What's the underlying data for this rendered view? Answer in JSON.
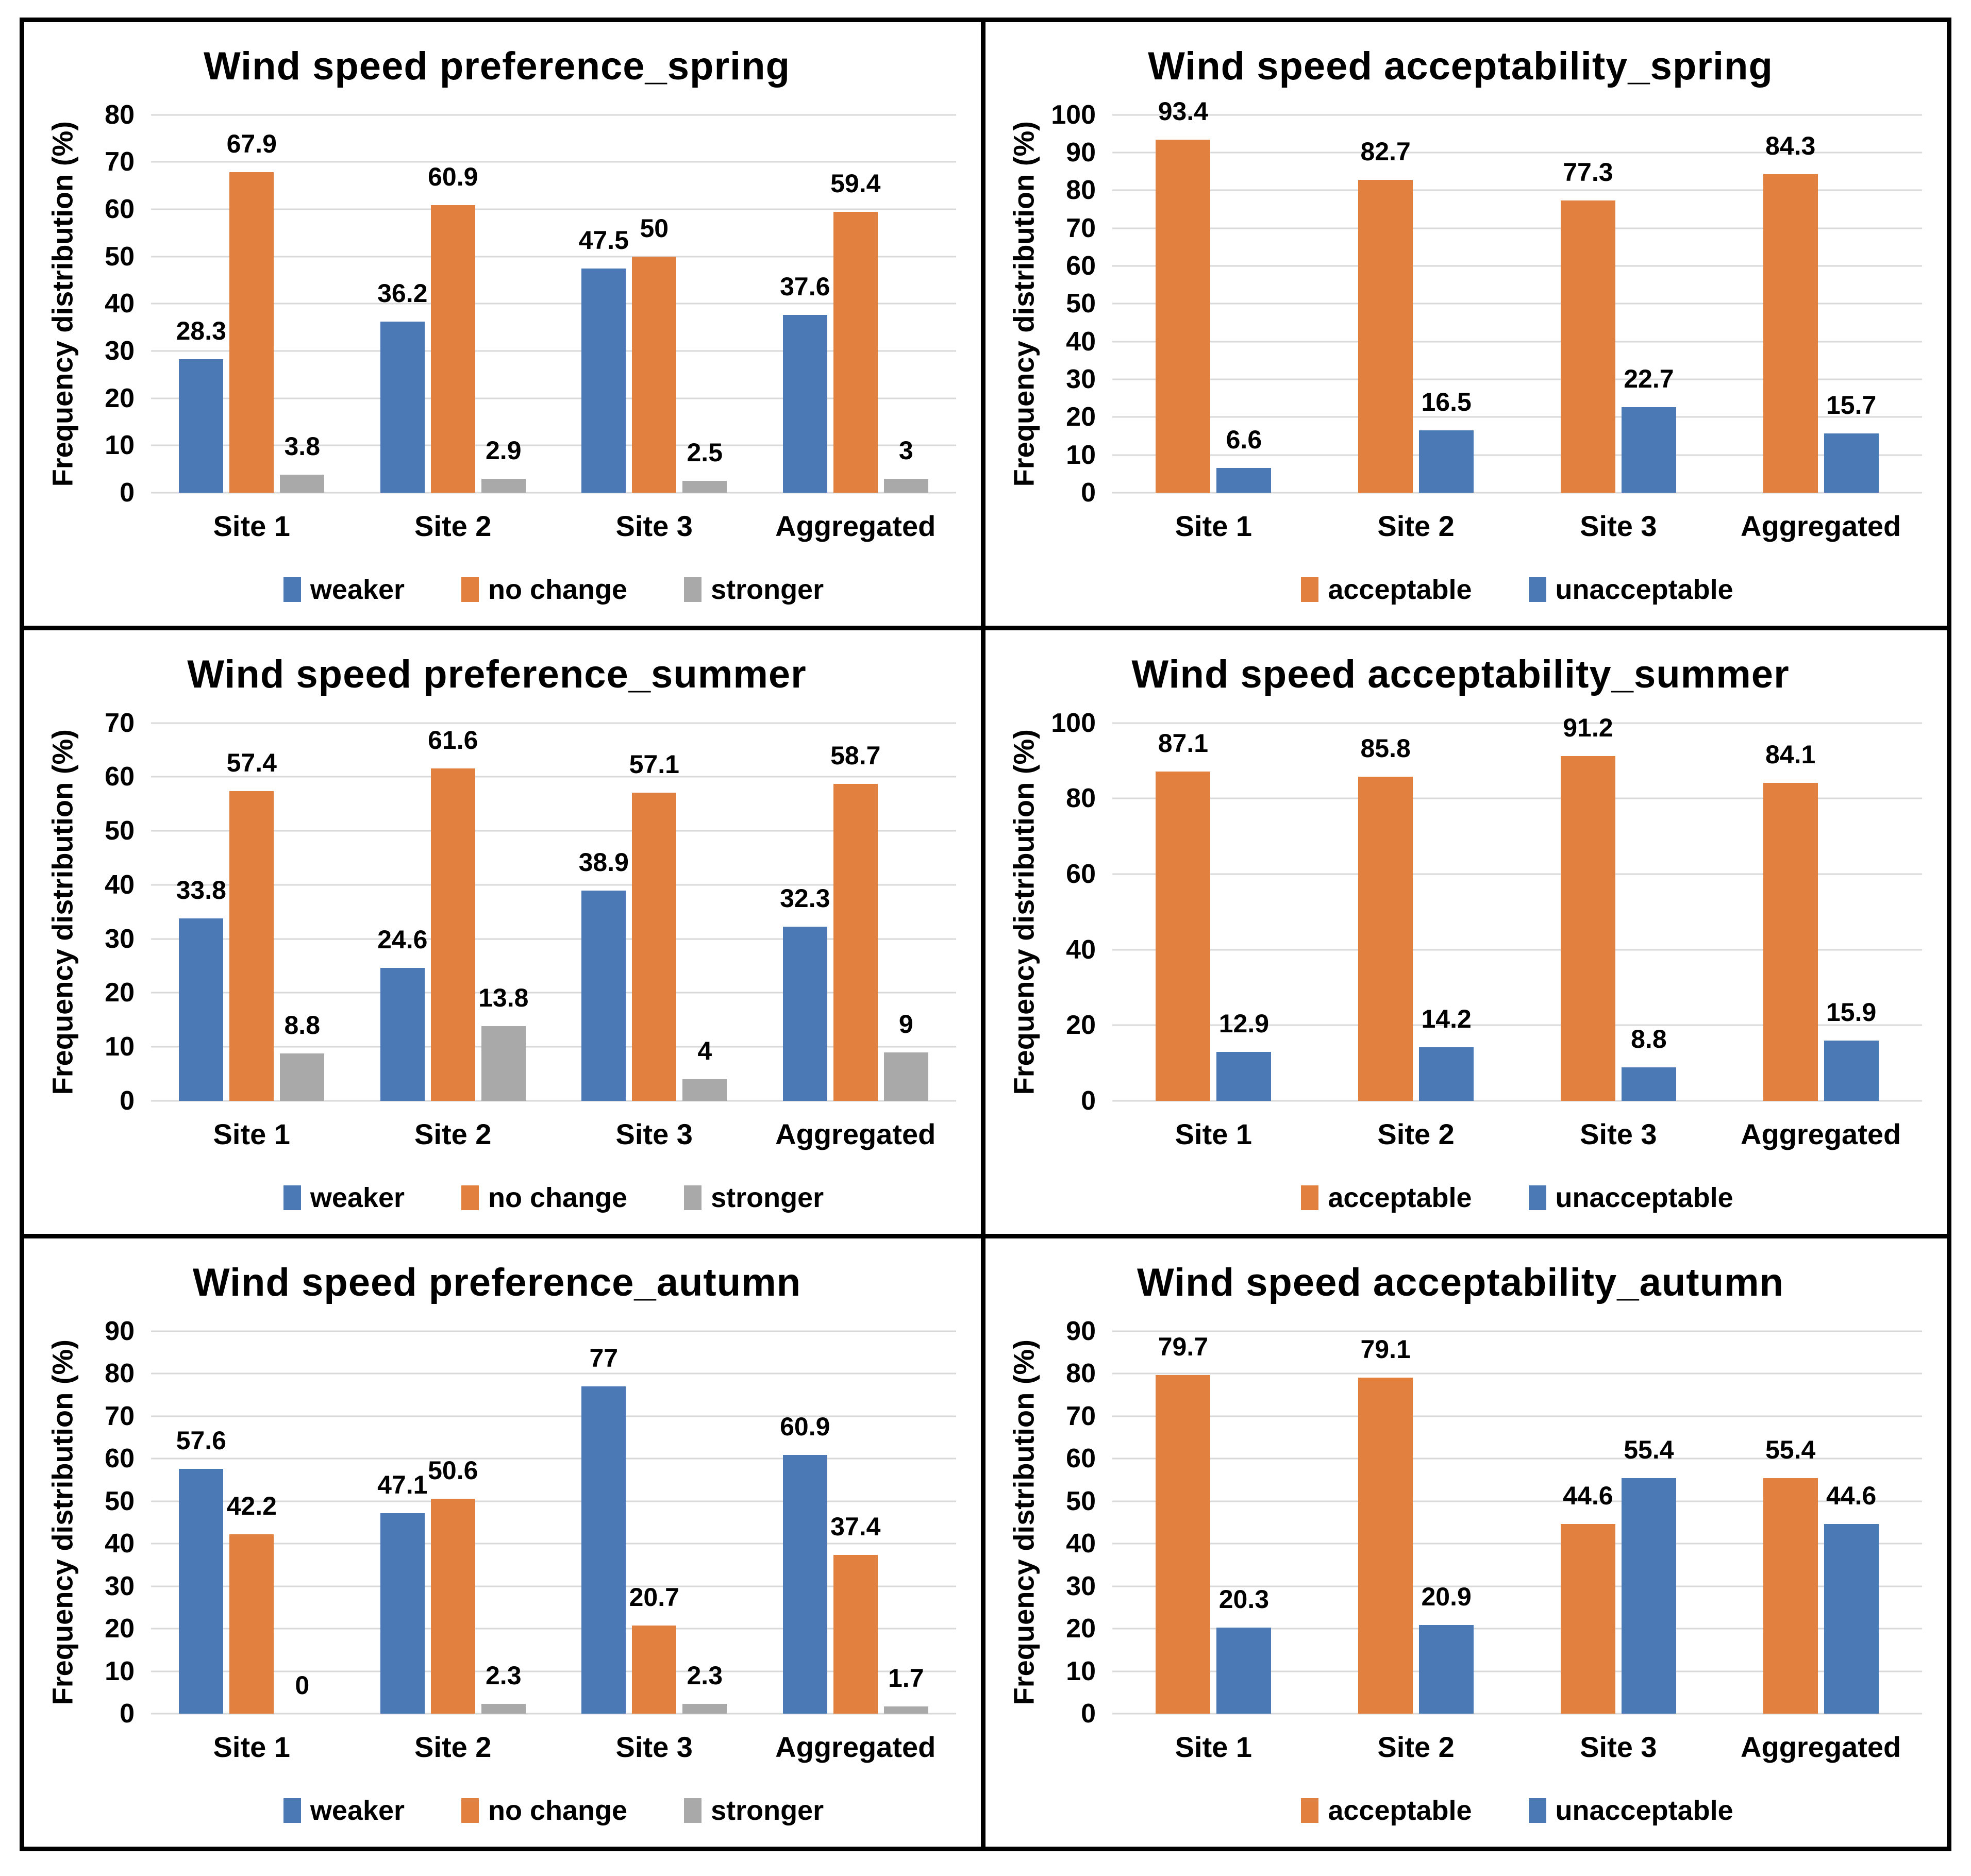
{
  "figure": {
    "background": "#ffffff",
    "border_color": "#000000",
    "gridline_color": "#D9D9D9",
    "text_color": "#000000",
    "accent_blue": "#4A79B5",
    "accent_orange": "#E2803F",
    "accent_gray": "#A9A9A9"
  },
  "chart_data": [
    {
      "type": "bar",
      "title": "Wind speed preference_spring",
      "ylabel": "Frequency distribution (%)",
      "ylim": [
        0,
        80
      ],
      "yticks": [
        0,
        10,
        20,
        30,
        40,
        50,
        60,
        70,
        80
      ],
      "grid": true,
      "legend_position": "bottom",
      "categories": [
        "Site 1",
        "Site 2",
        "Site 3",
        "Aggregated"
      ],
      "series": [
        {
          "name": "weaker",
          "color": "#4A79B5",
          "values": [
            28.3,
            36.2,
            47.5,
            37.6
          ]
        },
        {
          "name": "no change",
          "color": "#E2803F",
          "values": [
            67.9,
            60.9,
            50,
            59.4
          ]
        },
        {
          "name": "stronger",
          "color": "#A9A9A9",
          "values": [
            3.8,
            2.9,
            2.5,
            3
          ]
        }
      ]
    },
    {
      "type": "bar",
      "title": "Wind speed acceptability_spring",
      "ylabel": "Frequency distribution (%)",
      "ylim": [
        0,
        100
      ],
      "yticks": [
        0,
        10,
        20,
        30,
        40,
        50,
        60,
        70,
        80,
        90,
        100
      ],
      "grid": true,
      "legend_position": "bottom",
      "categories": [
        "Site 1",
        "Site 2",
        "Site 3",
        "Aggregated"
      ],
      "series": [
        {
          "name": "acceptable",
          "color": "#E2803F",
          "values": [
            93.4,
            82.7,
            77.3,
            84.3
          ]
        },
        {
          "name": "unacceptable",
          "color": "#4A79B5",
          "values": [
            6.6,
            16.5,
            22.7,
            15.7
          ]
        }
      ]
    },
    {
      "type": "bar",
      "title": "Wind speed preference_summer",
      "ylabel": "Frequency distribution (%)",
      "ylim": [
        0,
        70
      ],
      "yticks": [
        0,
        10,
        20,
        30,
        40,
        50,
        60,
        70
      ],
      "grid": true,
      "legend_position": "bottom",
      "categories": [
        "Site 1",
        "Site 2",
        "Site 3",
        "Aggregated"
      ],
      "series": [
        {
          "name": "weaker",
          "color": "#4A79B5",
          "values": [
            33.8,
            24.6,
            38.9,
            32.3
          ]
        },
        {
          "name": "no change",
          "color": "#E2803F",
          "values": [
            57.4,
            61.6,
            57.1,
            58.7
          ]
        },
        {
          "name": "stronger",
          "color": "#A9A9A9",
          "values": [
            8.8,
            13.8,
            4,
            9
          ]
        }
      ]
    },
    {
      "type": "bar",
      "title": "Wind speed acceptability_summer",
      "ylabel": "Frequency distribution (%)",
      "ylim": [
        0,
        100
      ],
      "yticks": [
        0,
        20,
        40,
        60,
        80,
        100
      ],
      "grid": true,
      "legend_position": "bottom",
      "categories": [
        "Site 1",
        "Site 2",
        "Site 3",
        "Aggregated"
      ],
      "series": [
        {
          "name": "acceptable",
          "color": "#E2803F",
          "values": [
            87.1,
            85.8,
            91.2,
            84.1
          ]
        },
        {
          "name": "unacceptable",
          "color": "#4A79B5",
          "values": [
            12.9,
            14.2,
            8.8,
            15.9
          ]
        }
      ]
    },
    {
      "type": "bar",
      "title": "Wind speed preference_autumn",
      "ylabel": "Frequency distribution (%)",
      "ylim": [
        0,
        90
      ],
      "yticks": [
        0,
        10,
        20,
        30,
        40,
        50,
        60,
        70,
        80,
        90
      ],
      "grid": true,
      "legend_position": "bottom",
      "categories": [
        "Site 1",
        "Site 2",
        "Site 3",
        "Aggregated"
      ],
      "series": [
        {
          "name": "weaker",
          "color": "#4A79B5",
          "values": [
            57.6,
            47.1,
            77,
            60.9
          ]
        },
        {
          "name": "no change",
          "color": "#E2803F",
          "values": [
            42.2,
            50.6,
            20.7,
            37.4
          ]
        },
        {
          "name": "stronger",
          "color": "#A9A9A9",
          "values": [
            0,
            2.3,
            2.3,
            1.7
          ]
        }
      ]
    },
    {
      "type": "bar",
      "title": "Wind speed acceptability_autumn",
      "ylabel": "Frequency distribution (%)",
      "ylim": [
        0,
        90
      ],
      "yticks": [
        0,
        10,
        20,
        30,
        40,
        50,
        60,
        70,
        80,
        90
      ],
      "grid": true,
      "legend_position": "bottom",
      "categories": [
        "Site 1",
        "Site 2",
        "Site 3",
        "Aggregated"
      ],
      "series": [
        {
          "name": "acceptable",
          "color": "#E2803F",
          "values": [
            79.7,
            79.1,
            44.6,
            55.4
          ]
        },
        {
          "name": "unacceptable",
          "color": "#4A79B5",
          "values": [
            20.3,
            20.9,
            55.4,
            44.6
          ]
        }
      ]
    }
  ]
}
